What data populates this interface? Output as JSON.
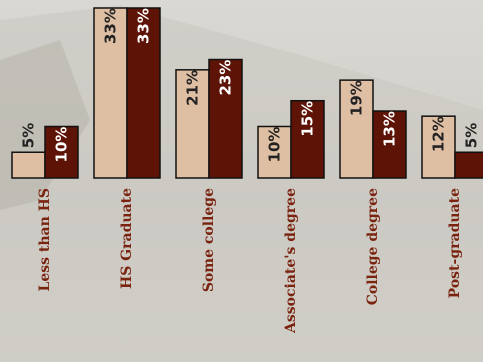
{
  "chart_data": {
    "type": "bar",
    "categories": [
      "Less than HS",
      "HS Graduate",
      "Some college",
      "Associate's degree",
      "College degree",
      "Post-graduate"
    ],
    "series": [
      {
        "values": [
          5,
          33,
          21,
          10,
          19,
          12
        ],
        "labels": [
          "5%",
          "33%",
          "21%",
          "10%",
          "19%",
          "12%"
        ],
        "color": "#dfbfa3"
      },
      {
        "values": [
          10,
          33,
          23,
          15,
          13,
          5
        ],
        "labels": [
          "10%",
          "33%",
          "23%",
          "15%",
          "13%",
          "5%"
        ],
        "color": "#5e1307"
      }
    ],
    "title": "",
    "xlabel": "",
    "ylabel": "",
    "ylim": [
      0,
      33
    ],
    "grid": false,
    "legend": "none",
    "colors": {
      "category_label": "#7a2410",
      "light_bar_text": "#222222",
      "dark_bar_text": "#ffffff",
      "background": "#d4d2cc"
    }
  }
}
